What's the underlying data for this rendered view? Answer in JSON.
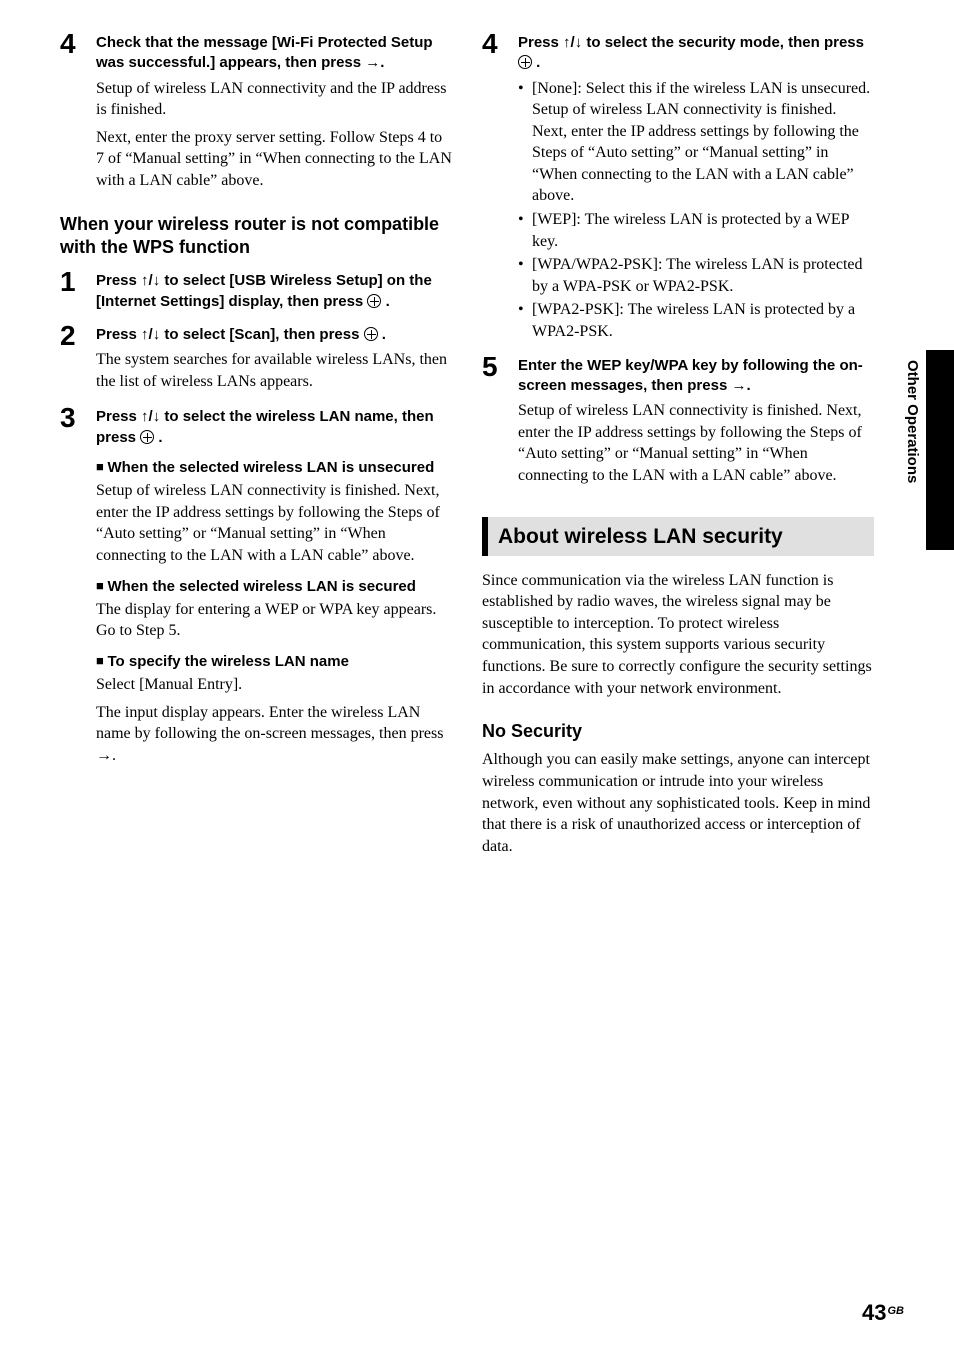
{
  "left": {
    "step4": {
      "num": "4",
      "head_a": "Check that the message [Wi-Fi Protected Setup was successful.] appears, then press ",
      "head_arrow": "→",
      "head_dot": ".",
      "p1": "Setup of wireless LAN connectivity and the IP address is finished.",
      "p2": "Next, enter the proxy server setting. Follow Steps 4 to 7 of “Manual setting” in “When connecting to the LAN with a LAN cable” above."
    },
    "subhead": "When your wireless router is not compatible with the WPS function",
    "step1": {
      "num": "1",
      "head_a": "Press ",
      "head_arrows": "↑/↓",
      "head_b": " to select [USB Wireless Setup] on the [Internet Settings] display, then press ",
      "head_dot": "."
    },
    "step2": {
      "num": "2",
      "head_a": "Press ",
      "head_arrows": "↑/↓",
      "head_b": " to select [Scan], then press ",
      "head_dot": ".",
      "p1": "The system searches for available wireless LANs, then the list of wireless LANs appears."
    },
    "step3": {
      "num": "3",
      "head_a": "Press ",
      "head_arrows": "↑/↓",
      "head_b": " to select the wireless LAN name, then press ",
      "head_dot": ".",
      "sq1_title": "When the selected wireless LAN is unsecured",
      "sq1_body": "Setup of wireless LAN connectivity is finished. Next, enter the IP address settings by following the Steps of “Auto setting” or “Manual setting” in “When connecting to the LAN with a LAN cable” above.",
      "sq2_title": "When the selected wireless LAN is secured",
      "sq2_body": "The display for entering a WEP or WPA key appears. Go to Step 5.",
      "sq3_title": "To specify the wireless LAN name",
      "sq3_b1": "Select [Manual Entry].",
      "sq3_b2a": "The input display appears. Enter the wireless LAN name by following the on-screen messages, then press ",
      "sq3_arrow": "→",
      "sq3_b2b": "."
    }
  },
  "right": {
    "step4": {
      "num": "4",
      "head_a": "Press ",
      "head_arrows": "↑/↓",
      "head_b": " to select the security mode, then press ",
      "head_dot": ".",
      "b1": "[None]: Select this if the wireless LAN is unsecured. Setup of wireless LAN connectivity is finished. Next, enter the IP address settings by following the Steps of “Auto setting” or “Manual setting” in “When connecting to the LAN with a LAN cable” above.",
      "b2": "[WEP]: The wireless LAN is protected by a WEP key.",
      "b3": "[WPA/WPA2-PSK]: The wireless LAN is protected by a WPA-PSK or WPA2-PSK.",
      "b4": "[WPA2-PSK]: The wireless LAN is protected by a WPA2-PSK."
    },
    "step5": {
      "num": "5",
      "head_a": "Enter the WEP key/WPA key by following the on-screen messages, then press ",
      "head_arrow": "→",
      "head_dot": ".",
      "p1": "Setup of wireless LAN connectivity is finished. Next, enter the IP address settings by following the Steps of “Auto setting” or “Manual setting” in “When connecting to the LAN with a LAN cable” above."
    },
    "section_title": "About wireless LAN security",
    "intro": "Since communication via the wireless LAN function is established by radio waves, the wireless signal may be susceptible to interception. To protect wireless communication, this system supports various security functions. Be sure to correctly configure the security settings in accordance with your network environment.",
    "h3": "No Security",
    "nosec": "Although you can easily make settings, anyone can intercept wireless communication or intrude into your wireless network, even without any sophisticated tools. Keep in mind that there is a risk of unauthorized access or interception of data."
  },
  "side_label": "Other Operations",
  "page_num": "43",
  "page_region": "GB"
}
